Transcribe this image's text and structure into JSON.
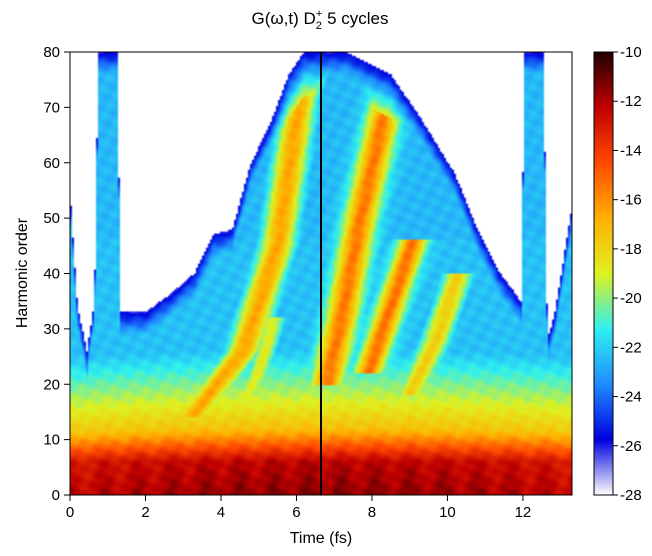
{
  "chart_data": {
    "type": "heatmap",
    "title_parts": {
      "prefix": "G(ω,t) D",
      "sub": "2",
      "sup": "+",
      "suffix": " 5 cycles"
    },
    "xlabel": "Time (fs)",
    "ylabel": "Harmonic order",
    "xlim": [
      0,
      13.3
    ],
    "ylim": [
      0,
      80
    ],
    "x_ticks": [
      "0",
      "2",
      "4",
      "6",
      "8",
      "10",
      "12"
    ],
    "y_ticks": [
      "0",
      "10",
      "20",
      "30",
      "40",
      "50",
      "60",
      "70",
      "80"
    ],
    "colorbar": {
      "range": [
        -28,
        -10
      ],
      "ticks": [
        "-10",
        "-12",
        "-14",
        "-16",
        "-18",
        "-20",
        "-22",
        "-24",
        "-26",
        "-28"
      ],
      "stops": [
        "#ffffff",
        "#0000e0",
        "#1f8cff",
        "#2ff0ef",
        "#dff020",
        "#ffb000",
        "#ff4a00",
        "#c00000",
        "#200000"
      ]
    },
    "marker_line_x": 6.65,
    "high_boundary": [
      {
        "t": 0.0,
        "q": 55
      },
      {
        "t": 0.2,
        "q": 34
      },
      {
        "t": 0.45,
        "q": 26
      },
      {
        "t": 0.65,
        "q": 35
      },
      {
        "t": 0.75,
        "q": 80
      },
      {
        "t": 1.25,
        "q": 80
      },
      {
        "t": 1.35,
        "q": 33
      },
      {
        "t": 2.0,
        "q": 33
      },
      {
        "t": 2.6,
        "q": 36
      },
      {
        "t": 3.3,
        "q": 40
      },
      {
        "t": 3.8,
        "q": 47
      },
      {
        "t": 4.3,
        "q": 48
      },
      {
        "t": 4.8,
        "q": 60
      },
      {
        "t": 5.3,
        "q": 67
      },
      {
        "t": 5.8,
        "q": 76
      },
      {
        "t": 6.2,
        "q": 80
      },
      {
        "t": 7.3,
        "q": 80
      },
      {
        "t": 8.5,
        "q": 76
      },
      {
        "t": 9.3,
        "q": 68
      },
      {
        "t": 10.2,
        "q": 58
      },
      {
        "t": 10.8,
        "q": 48
      },
      {
        "t": 11.4,
        "q": 40
      },
      {
        "t": 11.95,
        "q": 35
      },
      {
        "t": 12.05,
        "q": 80
      },
      {
        "t": 12.55,
        "q": 80
      },
      {
        "t": 12.65,
        "q": 28
      },
      {
        "t": 12.85,
        "q": 33
      },
      {
        "t": 13.3,
        "q": 52
      }
    ],
    "ridges": [
      {
        "path": [
          [
            3.2,
            14
          ],
          [
            4.6,
            26
          ],
          [
            5.5,
            45
          ],
          [
            6.1,
            72
          ],
          [
            6.4,
            80
          ]
        ],
        "peak": 16.5,
        "width": 0.45
      },
      {
        "path": [
          [
            6.8,
            20
          ],
          [
            7.2,
            32
          ],
          [
            7.7,
            50
          ],
          [
            8.3,
            68
          ],
          [
            8.8,
            80
          ]
        ],
        "peak": 15.5,
        "width": 0.42
      },
      {
        "path": [
          [
            7.9,
            22
          ],
          [
            8.3,
            30
          ],
          [
            8.7,
            38
          ],
          [
            9.1,
            46
          ]
        ],
        "peak": 15.3,
        "width": 0.35
      },
      {
        "path": [
          [
            9.0,
            18
          ],
          [
            9.7,
            28
          ],
          [
            10.3,
            40
          ]
        ],
        "peak": 17.8,
        "width": 0.45
      },
      {
        "path": [
          [
            4.6,
            16
          ],
          [
            5.0,
            22
          ],
          [
            5.4,
            32
          ]
        ],
        "peak": 18.8,
        "width": 0.4
      }
    ]
  }
}
